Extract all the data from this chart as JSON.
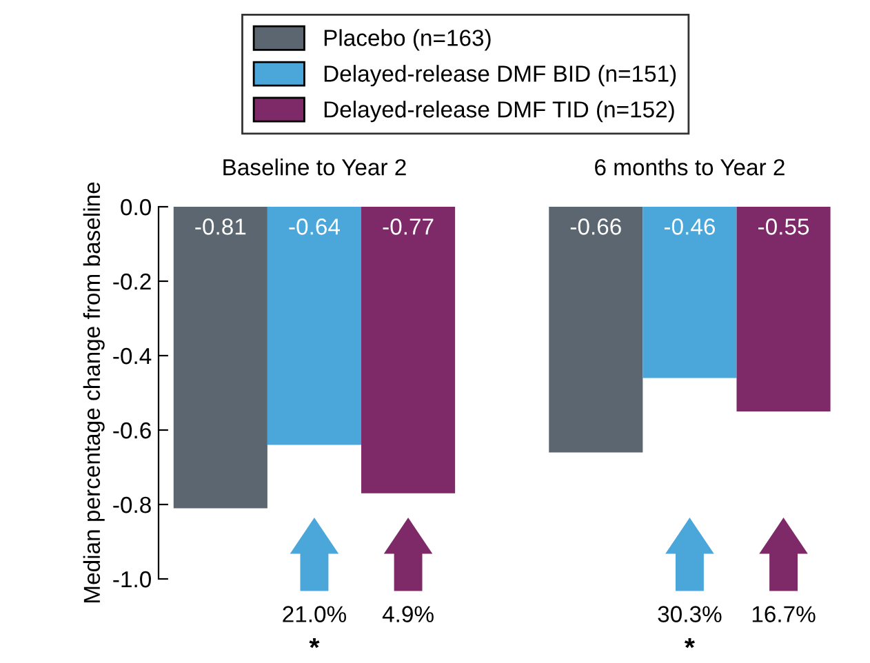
{
  "chart_data": {
    "type": "bar",
    "ylabel": "Median percentage change from baseline",
    "categories": [
      "Baseline to Year 2",
      "6 months to Year 2"
    ],
    "series": [
      {
        "name": "Placebo (n=163)",
        "color": "#5b6670",
        "values": [
          -0.81,
          -0.66
        ]
      },
      {
        "name": "Delayed-release DMF BID (n=151)",
        "color": "#4ba7d9",
        "values": [
          -0.64,
          -0.46
        ]
      },
      {
        "name": "Delayed-release DMF TID (n=152)",
        "color": "#7e2a68",
        "values": [
          -0.77,
          -0.55
        ]
      }
    ],
    "ylim": [
      -1.0,
      0.0
    ],
    "yticks": [
      {
        "value": 0.0,
        "label": "0.0"
      },
      {
        "value": -0.2,
        "label": "-0.2"
      },
      {
        "value": -0.4,
        "label": "-0.4"
      },
      {
        "value": -0.6,
        "label": "-0.6"
      },
      {
        "value": -0.8,
        "label": "-0.8"
      },
      {
        "value": -1.0,
        "label": "-1.0"
      }
    ],
    "data_labels": true,
    "legend": "top",
    "grid": false,
    "annotations": [
      "21.0%",
      "4.9%",
      "30.3%",
      "16.7%",
      "*",
      "*"
    ]
  }
}
